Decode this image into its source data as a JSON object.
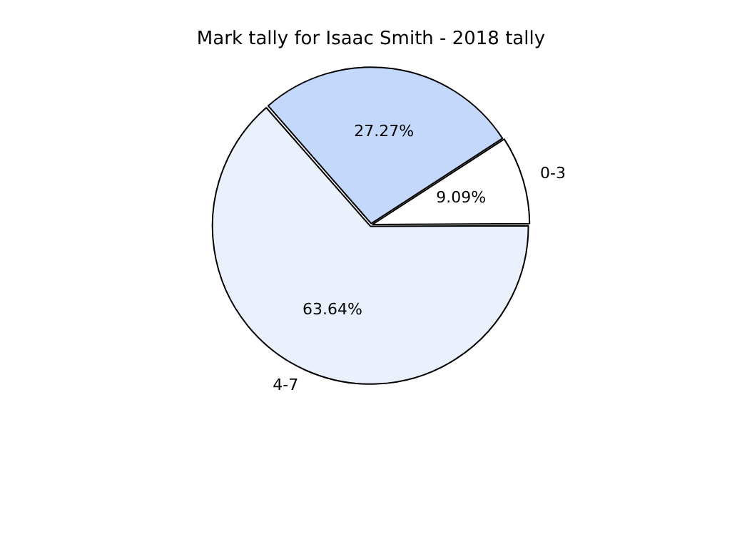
{
  "chart_data": {
    "type": "pie",
    "title": "Mark tally for Isaac Smith - 2018 tally",
    "categories": [
      "0-3",
      "4-7",
      null
    ],
    "values": [
      9.09,
      63.64,
      27.27
    ],
    "colors": [
      "#ffffff",
      "#eaf1fd",
      "#c3d8fb"
    ],
    "value_labels": [
      "9.09%",
      "63.64%",
      "27.27%"
    ],
    "legend": false
  }
}
